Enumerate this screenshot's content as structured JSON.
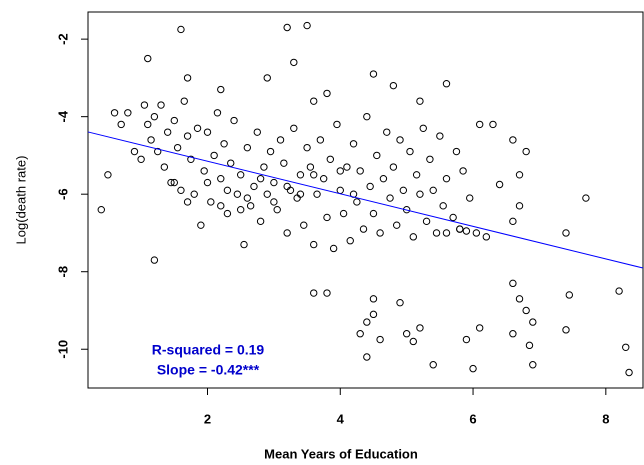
{
  "chart_data": {
    "type": "scatter",
    "xlabel": "Mean Years of Education",
    "ylabel": "Log(death rate)",
    "annotations": [
      "R-squared = 0.19",
      "Slope = -0.42***"
    ],
    "annotation_color": "#0000cc",
    "xlim": [
      0.2,
      8.56
    ],
    "ylim": [
      -11.0,
      -1.3
    ],
    "xticks": [
      2,
      4,
      6,
      8
    ],
    "yticks": [
      -2,
      -4,
      -6,
      -8,
      -10
    ],
    "regression": {
      "intercept": -4.31,
      "slope": -0.42,
      "color": "#0000ff"
    },
    "color": "#000000",
    "x": [
      1.6,
      3.2,
      3.5,
      3.3,
      1.1,
      2.9,
      1.7,
      2.2,
      3.6,
      3.8,
      4.5,
      4.8,
      5.6,
      5.2,
      0.5,
      0.4,
      1.2,
      3.6,
      3.8,
      4.3,
      4.4,
      4.4,
      4.5,
      4.6,
      4.5,
      4.9,
      5.0,
      5.1,
      5.2,
      5.4,
      5.9,
      6.0,
      6.1,
      6.6,
      6.7,
      6.6,
      6.8,
      6.9,
      6.85,
      6.9,
      7.4,
      7.45,
      8.2,
      8.3,
      8.35,
      7.7,
      7.4,
      6.7,
      6.6,
      6.7,
      6.6,
      6.8,
      6.1,
      6.4,
      6.2,
      5.8,
      5.9,
      5.6,
      0.6,
      0.7,
      0.8,
      0.9,
      1.0,
      1.05,
      1.1,
      1.15,
      1.2,
      1.25,
      1.3,
      1.35,
      1.4,
      1.45,
      1.5,
      1.55,
      1.6,
      1.65,
      1.7,
      1.75,
      1.8,
      1.85,
      1.9,
      1.95,
      2.0,
      2.05,
      2.1,
      2.15,
      2.2,
      2.25,
      2.3,
      2.35,
      2.4,
      2.45,
      2.5,
      2.55,
      2.6,
      2.65,
      2.7,
      2.75,
      2.8,
      2.85,
      2.9,
      2.95,
      3.0,
      3.05,
      3.1,
      3.15,
      3.2,
      3.25,
      3.3,
      3.35,
      3.4,
      3.45,
      3.5,
      3.55,
      3.6,
      3.65,
      3.7,
      3.75,
      3.8,
      3.85,
      3.9,
      3.95,
      4.0,
      4.05,
      4.1,
      4.15,
      4.2,
      4.25,
      4.3,
      4.35,
      4.4,
      4.45,
      4.5,
      4.55,
      4.6,
      4.65,
      4.7,
      4.75,
      4.8,
      4.85,
      4.9,
      4.95,
      5.0,
      5.05,
      5.1,
      5.15,
      5.2,
      5.25,
      5.3,
      5.35,
      5.4,
      5.45,
      5.5,
      5.55,
      5.6,
      5.7,
      5.75,
      5.8,
      5.85,
      5.95,
      6.05,
      6.3,
      2.0,
      2.3,
      2.6,
      2.8,
      3.0,
      3.2,
      3.4,
      2.2,
      2.5,
      1.5,
      1.7,
      3.6,
      4.0,
      4.2
    ],
    "y": [
      -1.75,
      -1.7,
      -1.65,
      -2.6,
      -2.5,
      -3.0,
      -3.0,
      -3.3,
      -3.6,
      -3.4,
      -2.9,
      -3.2,
      -3.15,
      -3.6,
      -5.5,
      -6.4,
      -7.7,
      -8.55,
      -8.55,
      -9.6,
      -9.3,
      -10.2,
      -9.1,
      -9.75,
      -8.7,
      -8.8,
      -9.6,
      -9.8,
      -9.45,
      -10.4,
      -9.75,
      -10.5,
      -9.45,
      -8.3,
      -8.7,
      -9.6,
      -9.0,
      -9.3,
      -9.9,
      -10.4,
      -9.5,
      -8.6,
      -8.5,
      -9.95,
      -10.6,
      -6.1,
      -7.0,
      -6.3,
      -6.7,
      -5.5,
      -4.6,
      -4.9,
      -4.2,
      -5.75,
      -7.1,
      -6.9,
      -6.95,
      -7.0,
      -3.9,
      -4.2,
      -3.9,
      -4.9,
      -5.1,
      -3.7,
      -4.2,
      -4.6,
      -4.0,
      -4.9,
      -3.7,
      -5.3,
      -4.4,
      -5.7,
      -4.1,
      -4.8,
      -5.9,
      -3.6,
      -4.5,
      -5.1,
      -6.0,
      -4.3,
      -6.8,
      -5.4,
      -4.4,
      -6.2,
      -5.0,
      -3.9,
      -5.6,
      -4.7,
      -6.5,
      -5.2,
      -4.1,
      -6.0,
      -5.5,
      -7.3,
      -4.8,
      -6.3,
      -5.8,
      -4.4,
      -6.7,
      -5.3,
      -6.0,
      -4.9,
      -5.7,
      -6.4,
      -4.6,
      -5.2,
      -7.0,
      -5.9,
      -4.3,
      -6.1,
      -5.5,
      -6.8,
      -4.8,
      -5.3,
      -7.3,
      -6.0,
      -4.6,
      -5.6,
      -6.6,
      -5.1,
      -7.4,
      -4.2,
      -5.9,
      -6.5,
      -5.3,
      -7.2,
      -4.7,
      -6.2,
      -5.4,
      -6.9,
      -4.0,
      -5.8,
      -6.5,
      -5.0,
      -7.0,
      -5.6,
      -4.4,
      -6.1,
      -5.3,
      -6.8,
      -4.6,
      -5.9,
      -6.4,
      -4.9,
      -7.1,
      -5.5,
      -6.0,
      -4.3,
      -6.7,
      -5.1,
      -5.9,
      -7.0,
      -4.5,
      -6.3,
      -5.6,
      -6.6,
      -4.9,
      -6.9,
      -5.4,
      -6.1,
      -7.0,
      -4.2,
      -5.7,
      -5.9,
      -6.1,
      -5.6,
      -6.2,
      -5.8,
      -6.0,
      -6.3,
      -6.4,
      -5.7,
      -6.2,
      -5.5,
      -5.4,
      -6.0
    ]
  }
}
